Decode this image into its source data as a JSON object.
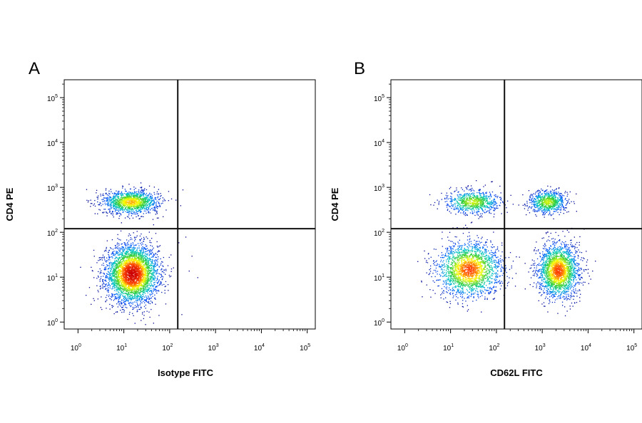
{
  "chart_data": [
    {
      "type": "scatter",
      "panel_label": "A",
      "xlabel": "Isotype FITC",
      "ylabel": "CD4 PE",
      "x_scale": "log",
      "y_scale": "log",
      "xlim": [
        0.5,
        150000
      ],
      "ylim": [
        0.7,
        250000
      ],
      "x_ticks": [
        1,
        10,
        100,
        1000,
        10000,
        100000
      ],
      "y_ticks": [
        1,
        10,
        100,
        1000,
        10000,
        100000
      ],
      "tick_base": "10",
      "x_tick_exponents": [
        "0",
        "1",
        "2",
        "3",
        "4",
        "5"
      ],
      "y_tick_exponents": [
        "0",
        "1",
        "2",
        "3",
        "4",
        "5"
      ],
      "gate_x": 150,
      "gate_y": 120,
      "colormap": [
        "#00008b",
        "#0050ff",
        "#00c8c8",
        "#32cd32",
        "#ffff00",
        "#ff4500",
        "#cc0000"
      ],
      "populations": [
        {
          "x": 15,
          "y": 12,
          "spread_x": 0.28,
          "spread_y": 0.32,
          "weight": 3800
        },
        {
          "x": 14,
          "y": 480,
          "spread_x": 0.3,
          "spread_y": 0.13,
          "weight": 1400
        }
      ],
      "outliers": [
        [
          170,
          400
        ],
        [
          220,
          80
        ],
        [
          300,
          30
        ],
        [
          260,
          14
        ],
        [
          180,
          1.5
        ],
        [
          400,
          10
        ],
        [
          190,
          900
        ]
      ]
    },
    {
      "type": "scatter",
      "panel_label": "B",
      "xlabel": "CD62L FITC",
      "ylabel": "CD4 PE",
      "x_scale": "log",
      "y_scale": "log",
      "xlim": [
        0.5,
        150000
      ],
      "ylim": [
        0.7,
        250000
      ],
      "x_ticks": [
        1,
        10,
        100,
        1000,
        10000,
        100000
      ],
      "y_ticks": [
        1,
        10,
        100,
        1000,
        10000,
        100000
      ],
      "tick_base": "10",
      "x_tick_exponents": [
        "0",
        "1",
        "2",
        "3",
        "4",
        "5"
      ],
      "y_tick_exponents": [
        "0",
        "1",
        "2",
        "3",
        "4",
        "5"
      ],
      "gate_x": 150,
      "gate_y": 120,
      "colormap": [
        "#00008b",
        "#0050ff",
        "#00c8c8",
        "#32cd32",
        "#ffff00",
        "#ff4500",
        "#cc0000"
      ],
      "populations": [
        {
          "x": 25,
          "y": 15,
          "spread_x": 0.35,
          "spread_y": 0.3,
          "weight": 2200
        },
        {
          "x": 2200,
          "y": 14,
          "spread_x": 0.22,
          "spread_y": 0.3,
          "weight": 2200
        },
        {
          "x": 30,
          "y": 480,
          "spread_x": 0.3,
          "spread_y": 0.13,
          "weight": 800
        },
        {
          "x": 1300,
          "y": 480,
          "spread_x": 0.2,
          "spread_y": 0.13,
          "weight": 800
        }
      ],
      "outliers": [
        [
          8000,
          120
        ],
        [
          6000,
          30
        ],
        [
          4000,
          2
        ],
        [
          9000,
          15
        ]
      ]
    }
  ]
}
